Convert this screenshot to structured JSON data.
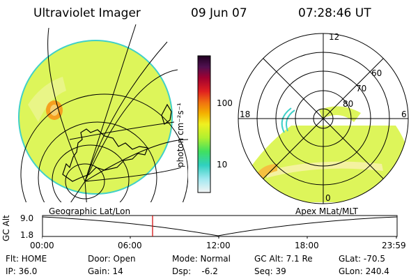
{
  "header": {
    "instrument": "Ultraviolet Imager",
    "date": "09 Jun 07",
    "time": "07:28:46 UT"
  },
  "left_panel": {
    "label": "Geographic Lat/Lon"
  },
  "right_panel": {
    "label": "Apex MLat/MLT",
    "mlt_labels": [
      "12",
      "18",
      "6",
      "0"
    ],
    "mlat_labels": [
      "60",
      "70",
      "80"
    ]
  },
  "colorbar": {
    "unit_label": "photon cm⁻²s⁻¹",
    "tick_labels": [
      "100",
      "10"
    ]
  },
  "altitude_plot": {
    "axis_label": "GC Alt",
    "y_ticks": [
      "9.0",
      "1.8"
    ],
    "time_ticks": [
      "00:00",
      "06:00",
      "12:00",
      "18:00",
      "23:59"
    ],
    "marker_time": "07:28"
  },
  "info": {
    "row1": {
      "filter": "Flt: HOME",
      "door": "Door: Open",
      "mode": "Mode: Normal",
      "gc_alt": "GC Alt: 7.1 Re",
      "glat": "GLat: -70.5"
    },
    "row2": {
      "ip": "IP: 36.0",
      "gain": "Gain: 14",
      "dsp": "Dsp:    -6.2",
      "seq": "Seq: 39",
      "glon": "GLon: 240.4"
    }
  },
  "colors": {
    "background_fill": "#ddf55a",
    "limb_outline": "#40d0c8",
    "bright_band": "#f4f2a0",
    "hot_spot": "#f5a020",
    "marker_line": "#d00000"
  }
}
